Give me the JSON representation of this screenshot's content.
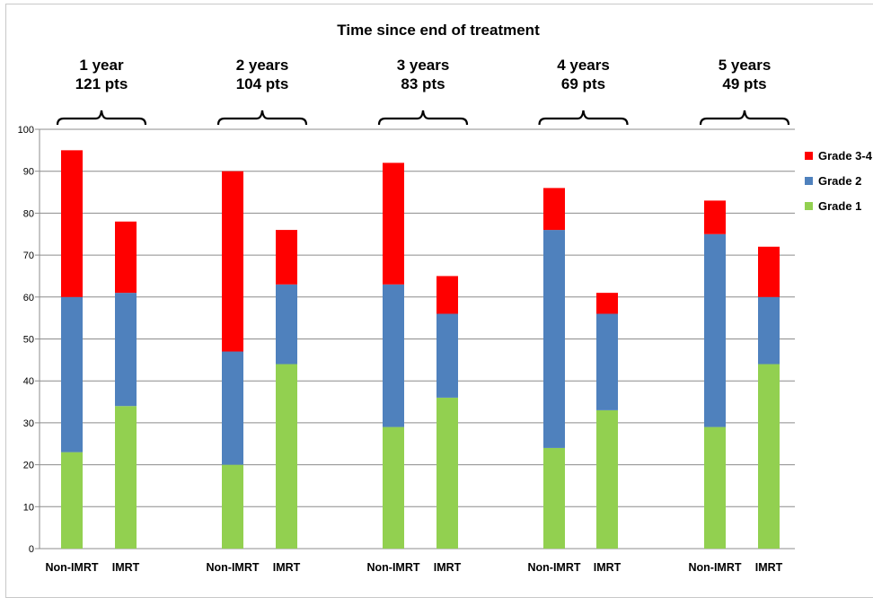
{
  "chart_data": {
    "type": "bar",
    "stacked": true,
    "title": "Time since end of treatment",
    "xlabel": "",
    "ylabel": "",
    "ylim": [
      0,
      100
    ],
    "yticks": [
      0,
      10,
      20,
      30,
      40,
      50,
      60,
      70,
      80,
      90,
      100
    ],
    "grid": true,
    "legend_position": "right",
    "groups": [
      {
        "label_line1": "1 year",
        "label_line2": "121 pts"
      },
      {
        "label_line1": "2 years",
        "label_line2": "104 pts"
      },
      {
        "label_line1": "3 years",
        "label_line2": "83 pts"
      },
      {
        "label_line1": "4 years",
        "label_line2": "69 pts"
      },
      {
        "label_line1": "5 years",
        "label_line2": "49 pts"
      }
    ],
    "categories": [
      "Non-IMRT",
      "IMRT",
      "Non-IMRT",
      "IMRT",
      "Non-IMRT",
      "IMRT",
      "Non-IMRT",
      "IMRT",
      "Non-IMRT",
      "IMRT"
    ],
    "series": [
      {
        "name": "Grade 1",
        "color": "#92d050",
        "values": [
          23,
          34,
          20,
          44,
          29,
          36,
          24,
          33,
          29,
          44
        ]
      },
      {
        "name": "Grade 2",
        "color": "#4f81bd",
        "values": [
          37,
          27,
          27,
          19,
          34,
          20,
          52,
          23,
          46,
          16
        ]
      },
      {
        "name": "Grade 3-4",
        "color": "#ff0000",
        "values": [
          35,
          17,
          43,
          13,
          29,
          9,
          10,
          5,
          8,
          12
        ]
      }
    ],
    "legend_order": [
      "Grade 3-4",
      "Grade 2",
      "Grade 1"
    ]
  }
}
